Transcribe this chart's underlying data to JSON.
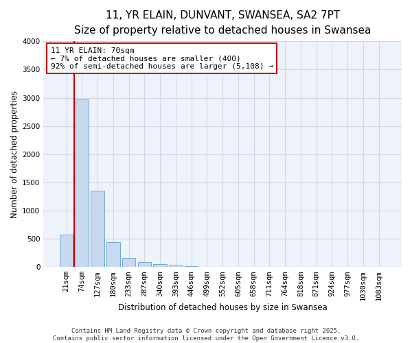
{
  "title": "11, YR ELAIN, DUNVANT, SWANSEA, SA2 7PT",
  "subtitle": "Size of property relative to detached houses in Swansea",
  "xlabel": "Distribution of detached houses by size in Swansea",
  "ylabel": "Number of detached properties",
  "bar_color": "#c8d9ef",
  "bar_edge_color": "#6aaad4",
  "background_color": "#eef2fb",
  "grid_color": "#d0d8e8",
  "categories": [
    "21sqm",
    "74sqm",
    "127sqm",
    "180sqm",
    "233sqm",
    "287sqm",
    "340sqm",
    "393sqm",
    "446sqm",
    "499sqm",
    "552sqm",
    "605sqm",
    "658sqm",
    "711sqm",
    "764sqm",
    "818sqm",
    "871sqm",
    "924sqm",
    "977sqm",
    "1030sqm",
    "1083sqm"
  ],
  "values": [
    580,
    2970,
    1350,
    440,
    160,
    90,
    55,
    25,
    12,
    8,
    5,
    3,
    2,
    2,
    1,
    1,
    1,
    1,
    0,
    0,
    0
  ],
  "ylim": [
    0,
    4000
  ],
  "yticks": [
    0,
    500,
    1000,
    1500,
    2000,
    2500,
    3000,
    3500,
    4000
  ],
  "annotation_text": "11 YR ELAIN: 70sqm\n← 7% of detached houses are smaller (400)\n92% of semi-detached houses are larger (5,108) →",
  "red_line_index": 1,
  "annotation_box_color": "white",
  "annotation_box_edge": "#cc0000",
  "footer_line1": "Contains HM Land Registry data © Crown copyright and database right 2025.",
  "footer_line2": "Contains public sector information licensed under the Open Government Licence v3.0.",
  "title_fontsize": 11,
  "subtitle_fontsize": 9.5,
  "axis_label_fontsize": 8.5,
  "tick_fontsize": 7.5,
  "annotation_fontsize": 8,
  "footer_fontsize": 6.5
}
